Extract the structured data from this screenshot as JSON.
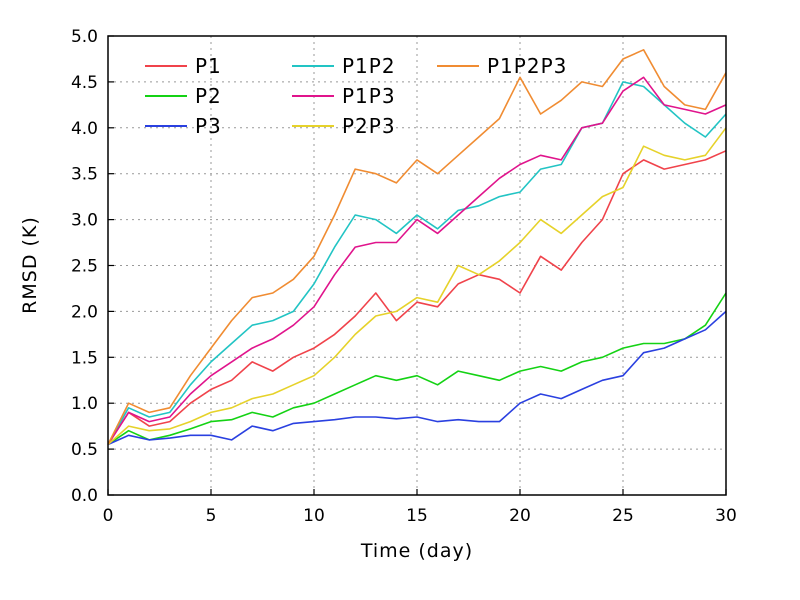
{
  "chart_data": {
    "type": "line",
    "title": "",
    "xlabel": "Time (day)",
    "ylabel": "RMSD (K)",
    "xlim": [
      0,
      30
    ],
    "ylim": [
      0,
      5
    ],
    "xticks": [
      0,
      5,
      10,
      15,
      20,
      25,
      30
    ],
    "yticks": [
      "0.0",
      "0.5",
      "1.0",
      "1.5",
      "2.0",
      "2.5",
      "3.0",
      "3.5",
      "4.0",
      "4.5",
      "5.0"
    ],
    "grid": true,
    "legend_position": "top-left",
    "series": [
      {
        "name": "P1",
        "color": "#f0434b",
        "x": [
          0,
          1,
          2,
          3,
          4,
          5,
          6,
          7,
          8,
          9,
          10,
          11,
          12,
          13,
          14,
          15,
          16,
          17,
          18,
          19,
          20,
          21,
          22,
          23,
          24,
          25,
          26,
          27,
          28,
          29,
          30
        ],
        "y": [
          0.55,
          0.9,
          0.75,
          0.8,
          1.0,
          1.15,
          1.25,
          1.45,
          1.35,
          1.5,
          1.6,
          1.75,
          1.95,
          2.2,
          1.9,
          2.1,
          2.05,
          2.3,
          2.4,
          2.35,
          2.2,
          2.6,
          2.45,
          2.75,
          3.0,
          3.5,
          3.65,
          3.55,
          3.6,
          3.65,
          3.75
        ]
      },
      {
        "name": "P2",
        "color": "#14d214",
        "x": [
          0,
          1,
          2,
          3,
          4,
          5,
          6,
          7,
          8,
          9,
          10,
          11,
          12,
          13,
          14,
          15,
          16,
          17,
          18,
          19,
          20,
          21,
          22,
          23,
          24,
          25,
          26,
          27,
          28,
          29,
          30
        ],
        "y": [
          0.55,
          0.7,
          0.6,
          0.65,
          0.72,
          0.8,
          0.82,
          0.9,
          0.85,
          0.95,
          1.0,
          1.1,
          1.2,
          1.3,
          1.25,
          1.3,
          1.2,
          1.35,
          1.3,
          1.25,
          1.35,
          1.4,
          1.35,
          1.45,
          1.5,
          1.6,
          1.65,
          1.65,
          1.7,
          1.85,
          2.2
        ]
      },
      {
        "name": "P3",
        "color": "#2a40e0",
        "x": [
          0,
          1,
          2,
          3,
          4,
          5,
          6,
          7,
          8,
          9,
          10,
          11,
          12,
          13,
          14,
          15,
          16,
          17,
          18,
          19,
          20,
          21,
          22,
          23,
          24,
          25,
          26,
          27,
          28,
          29,
          30
        ],
        "y": [
          0.55,
          0.65,
          0.6,
          0.62,
          0.65,
          0.65,
          0.6,
          0.75,
          0.7,
          0.78,
          0.8,
          0.82,
          0.85,
          0.85,
          0.83,
          0.85,
          0.8,
          0.82,
          0.8,
          0.8,
          1.0,
          1.1,
          1.05,
          1.15,
          1.25,
          1.3,
          1.55,
          1.6,
          1.7,
          1.8,
          2.0
        ]
      },
      {
        "name": "P1P2",
        "color": "#22c4c4",
        "x": [
          0,
          1,
          2,
          3,
          4,
          5,
          6,
          7,
          8,
          9,
          10,
          11,
          12,
          13,
          14,
          15,
          16,
          17,
          18,
          19,
          20,
          21,
          22,
          23,
          24,
          25,
          26,
          27,
          28,
          29,
          30
        ],
        "y": [
          0.55,
          0.95,
          0.85,
          0.9,
          1.2,
          1.45,
          1.65,
          1.85,
          1.9,
          2.0,
          2.3,
          2.7,
          3.05,
          3.0,
          2.85,
          3.05,
          2.9,
          3.1,
          3.15,
          3.25,
          3.3,
          3.55,
          3.6,
          4.0,
          4.05,
          4.5,
          4.45,
          4.25,
          4.05,
          3.9,
          4.15
        ]
      },
      {
        "name": "P1P3",
        "color": "#e0148c",
        "x": [
          0,
          1,
          2,
          3,
          4,
          5,
          6,
          7,
          8,
          9,
          10,
          11,
          12,
          13,
          14,
          15,
          16,
          17,
          18,
          19,
          20,
          21,
          22,
          23,
          24,
          25,
          26,
          27,
          28,
          29,
          30
        ],
        "y": [
          0.55,
          0.9,
          0.8,
          0.85,
          1.1,
          1.3,
          1.45,
          1.6,
          1.7,
          1.85,
          2.05,
          2.4,
          2.7,
          2.75,
          2.75,
          3.0,
          2.85,
          3.05,
          3.25,
          3.45,
          3.6,
          3.7,
          3.65,
          4.0,
          4.05,
          4.4,
          4.55,
          4.25,
          4.2,
          4.15,
          4.25
        ]
      },
      {
        "name": "P2P3",
        "color": "#e6d22a",
        "x": [
          0,
          1,
          2,
          3,
          4,
          5,
          6,
          7,
          8,
          9,
          10,
          11,
          12,
          13,
          14,
          15,
          16,
          17,
          18,
          19,
          20,
          21,
          22,
          23,
          24,
          25,
          26,
          27,
          28,
          29,
          30
        ],
        "y": [
          0.55,
          0.75,
          0.7,
          0.72,
          0.8,
          0.9,
          0.95,
          1.05,
          1.1,
          1.2,
          1.3,
          1.5,
          1.75,
          1.95,
          2.0,
          2.15,
          2.1,
          2.5,
          2.4,
          2.55,
          2.75,
          3.0,
          2.85,
          3.05,
          3.25,
          3.35,
          3.8,
          3.7,
          3.65,
          3.7,
          4.0
        ]
      },
      {
        "name": "P1P2P3",
        "color": "#f08c32",
        "x": [
          0,
          1,
          2,
          3,
          4,
          5,
          6,
          7,
          8,
          9,
          10,
          11,
          12,
          13,
          14,
          15,
          16,
          17,
          18,
          19,
          20,
          21,
          22,
          23,
          24,
          25,
          26,
          27,
          28,
          29,
          30
        ],
        "y": [
          0.55,
          1.0,
          0.9,
          0.95,
          1.3,
          1.6,
          1.9,
          2.15,
          2.2,
          2.35,
          2.6,
          3.05,
          3.55,
          3.5,
          3.4,
          3.65,
          3.5,
          3.7,
          3.9,
          4.1,
          4.55,
          4.15,
          4.3,
          4.5,
          4.45,
          4.75,
          4.85,
          4.45,
          4.25,
          4.2,
          4.6
        ]
      }
    ]
  }
}
